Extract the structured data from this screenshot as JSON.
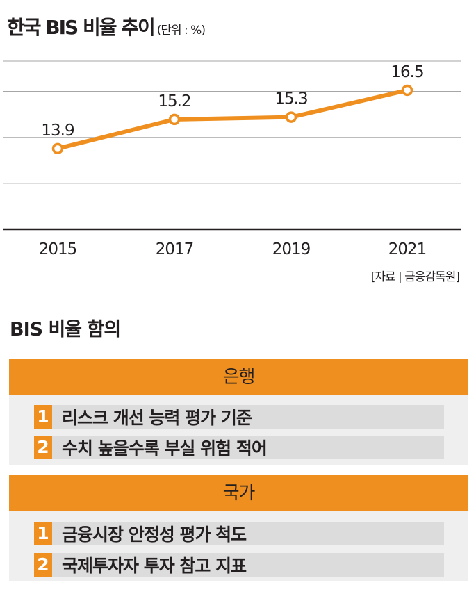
{
  "chart_data": {
    "type": "line",
    "title": "한국 BIS 비율 추이",
    "unit": "(단위 : %)",
    "categories": [
      "2015",
      "2017",
      "2019",
      "2021"
    ],
    "values": [
      13.9,
      15.2,
      15.3,
      16.5
    ],
    "data_labels": [
      "13.9",
      "15.2",
      "15.3",
      "16.5"
    ],
    "ylim": [
      10.3,
      17.8
    ],
    "gridlines": [
      12.35,
      14.4,
      16.45
    ],
    "color": "#ee8f1f",
    "source": "[자료 | 금융감독원]"
  },
  "implications": {
    "title": "BIS 비율 함의",
    "groups": [
      {
        "header": "은행",
        "items": [
          {
            "num": "1",
            "text": "리스크 개선 능력 평가 기준"
          },
          {
            "num": "2",
            "text": "수치 높을수록 부실 위험 적어"
          }
        ]
      },
      {
        "header": "국가",
        "items": [
          {
            "num": "1",
            "text": "금융시장 안정성 평가 척도"
          },
          {
            "num": "2",
            "text": "국제투자자 투자 참고 지표"
          }
        ]
      }
    ]
  },
  "colors": {
    "accent": "#ee8f1f",
    "panel": "#efefef",
    "item": "#dcdcdc",
    "grid": "#a6a6a6"
  }
}
